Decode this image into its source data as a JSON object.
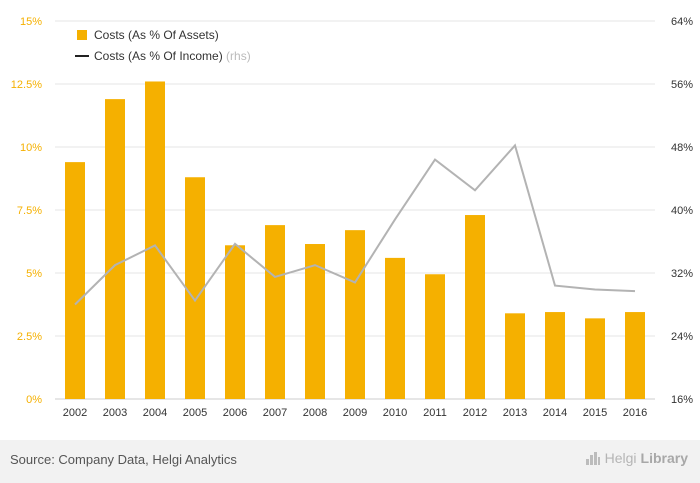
{
  "chart_data": {
    "type": "bar",
    "categories": [
      "2002",
      "2003",
      "2004",
      "2005",
      "2006",
      "2007",
      "2008",
      "2009",
      "2010",
      "2011",
      "2012",
      "2013",
      "2014",
      "2015",
      "2016"
    ],
    "series": [
      {
        "name": "Costs (As % Of Assets)",
        "type": "bar",
        "axis": "left",
        "color": "#f5b000",
        "values": [
          9.4,
          11.9,
          12.6,
          8.8,
          6.1,
          6.9,
          6.15,
          6.7,
          5.6,
          4.95,
          7.3,
          3.4,
          3.45,
          3.2,
          3.45
        ]
      },
      {
        "name": "Costs (As % Of Income)",
        "rhs_suffix": "(rhs)",
        "type": "line",
        "axis": "right",
        "color": "#b3b3b3",
        "values": [
          28.0,
          33.0,
          35.5,
          28.5,
          35.7,
          31.5,
          33.0,
          30.8,
          38.8,
          46.4,
          42.5,
          48.2,
          30.4,
          29.9,
          29.7
        ]
      }
    ],
    "y_left": {
      "range": [
        0,
        15
      ],
      "ticks": [
        "0%",
        "2.5%",
        "5%",
        "7.5%",
        "10%",
        "12.5%",
        "15%"
      ]
    },
    "y_right": {
      "range": [
        16,
        64
      ],
      "ticks": [
        "16%",
        "24%",
        "32%",
        "40%",
        "48%",
        "56%",
        "64%"
      ]
    },
    "grid": true,
    "legend_position": "top-left"
  },
  "footer": {
    "source": "Source: Company Data, Helgi Analytics",
    "logo_part1": "Helgi",
    "logo_part2": "Library"
  }
}
